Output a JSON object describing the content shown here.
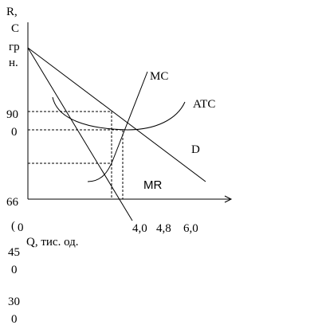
{
  "y_axis_label": [
    "R,",
    "C",
    "гр",
    "н."
  ],
  "y_axis_marks": [
    "90",
    "0",
    "66",
    "(",
    "0",
    "45",
    "0",
    "30",
    "0"
  ],
  "x_axis_label": "Q, тис. од.",
  "x_axis_marks": [
    "4,0",
    "4,8",
    "6,0"
  ],
  "curves": {
    "mc": "MC",
    "atc": "ATC",
    "d": "D",
    "mr": "MR"
  }
}
